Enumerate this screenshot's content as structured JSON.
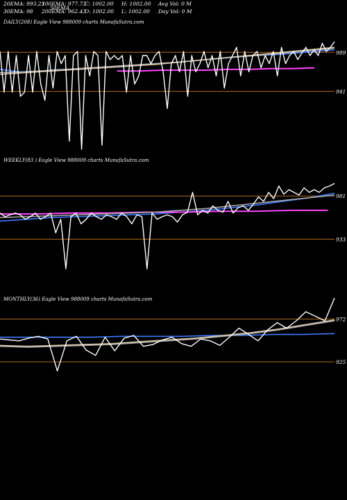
{
  "header": {
    "row1": [
      "20EMA: 993.23",
      "100EMA: 977.73",
      "C: 1002.00",
      "H: 1002.00",
      "Avg Vol: 0  M"
    ],
    "row2": [
      "30EMA: 98",
      "200EMA: 962.43",
      "O: 1002.00",
      "L: 1002.00",
      "Day Vol: 0  M"
    ],
    "overlap": "50EMA"
  },
  "colors": {
    "background": "#000000",
    "price": "#ffffff",
    "ema_blue": "#3d7bff",
    "ema_pink": "#ff44ff",
    "ema_gray": "#a9a9a9",
    "ema_tan": "#d6c5a8",
    "level_line": "#b36b1e",
    "text": "#ffffff"
  },
  "chart_data": [
    {
      "type": "line",
      "title": "DAILY(208) Eagle   View  988009 charts MunafaSutra.com",
      "levels": [
        989,
        941
      ],
      "ylim": [
        870,
        1002
      ],
      "series": [
        {
          "role": "price",
          "values": [
            990,
            940,
            990,
            940,
            985,
            935,
            940,
            985,
            940,
            990,
            950,
            930,
            985,
            945,
            990,
            975,
            985,
            880,
            985,
            990,
            870,
            985,
            960,
            990,
            985,
            875,
            990,
            980,
            985,
            980,
            985,
            940,
            985,
            950,
            960,
            985,
            985,
            975,
            985,
            990,
            965,
            920,
            975,
            985,
            965,
            990,
            935,
            985,
            965,
            975,
            990,
            970,
            985,
            960,
            990,
            945,
            975,
            985,
            995,
            960,
            990,
            965,
            985,
            990,
            970,
            985,
            975,
            990,
            960,
            995,
            975,
            985,
            990,
            980,
            988,
            995,
            985,
            992,
            985,
            1000,
            990,
            995,
            1002
          ]
        },
        {
          "role": "ema",
          "color": "blue",
          "values": [
            968,
            965,
            966,
            968,
            968,
            970,
            971,
            973,
            975,
            977,
            979,
            981,
            983,
            985,
            986,
            988,
            990,
            992
          ]
        },
        {
          "role": "ema",
          "color": "pink",
          "values": [
            966,
            966,
            967,
            967,
            967,
            968,
            968,
            969,
            969,
            970
          ]
        },
        {
          "role": "ema",
          "color": "gray",
          "values": [
            964,
            965,
            967,
            969,
            971,
            973,
            975,
            977,
            980,
            983,
            985,
            988,
            991,
            994
          ]
        },
        {
          "role": "ema",
          "color": "tan",
          "values": [
            962,
            964,
            966,
            968,
            970,
            972,
            974,
            977,
            980,
            983,
            986,
            989,
            992,
            995
          ]
        }
      ]
    },
    {
      "type": "line",
      "title": "WEEKLY(83                ) Eagle   View  988009 charts MunafaSutra.com",
      "levels": [
        981,
        933
      ],
      "ylim": [
        890,
        1002
      ],
      "series": [
        {
          "role": "price",
          "values": [
            962,
            958,
            960,
            962,
            960,
            955,
            958,
            962,
            955,
            958,
            962,
            940,
            955,
            900,
            958,
            962,
            950,
            955,
            962,
            958,
            955,
            960,
            958,
            955,
            962,
            958,
            950,
            960,
            958,
            900,
            962,
            955,
            958,
            960,
            958,
            952,
            960,
            963,
            985,
            960,
            965,
            962,
            970,
            965,
            963,
            975,
            962,
            968,
            970,
            965,
            972,
            980,
            975,
            985,
            978,
            992,
            983,
            988,
            985,
            982,
            990,
            985,
            988,
            985,
            990,
            992,
            995
          ]
        },
        {
          "role": "ema",
          "color": "blue",
          "values": [
            953,
            955,
            957,
            958,
            959,
            960,
            961,
            963,
            965,
            968,
            971,
            975,
            979,
            984
          ]
        },
        {
          "role": "ema",
          "color": "pink",
          "values": [
            961,
            961,
            962,
            962,
            963,
            963,
            964,
            964,
            965,
            965
          ]
        },
        {
          "role": "ema",
          "color": "gray",
          "values": [
            957,
            958,
            959,
            960,
            961,
            962,
            963,
            965,
            967,
            970,
            973,
            976,
            979,
            982
          ]
        }
      ]
    },
    {
      "type": "line",
      "title": "MONTHLY(36) Eagle   View  988009 charts MunafaSutra.com",
      "levels": [
        972,
        925
      ],
      "ylim": [
        880,
        1002
      ],
      "series": [
        {
          "role": "price",
          "values": [
            950,
            949,
            948,
            951,
            953,
            950,
            915,
            948,
            953,
            938,
            932,
            952,
            937,
            951,
            954,
            942,
            944,
            949,
            952,
            945,
            942,
            950,
            948,
            943,
            952,
            962,
            955,
            948,
            960,
            968,
            962,
            970,
            980,
            975,
            970,
            995
          ]
        },
        {
          "role": "ema",
          "color": "blue",
          "values": [
            952,
            952,
            952,
            952,
            953,
            953,
            953,
            954,
            954,
            955,
            955,
            956
          ]
        },
        {
          "role": "ema",
          "color": "gray",
          "values": [
            942,
            941,
            942,
            943,
            944,
            946,
            948,
            950,
            953,
            956,
            960,
            965,
            970
          ]
        },
        {
          "role": "ema",
          "color": "tan",
          "values": [
            943,
            942,
            943,
            944,
            945,
            947,
            949,
            951,
            954,
            957,
            961,
            966,
            971
          ]
        }
      ]
    }
  ]
}
